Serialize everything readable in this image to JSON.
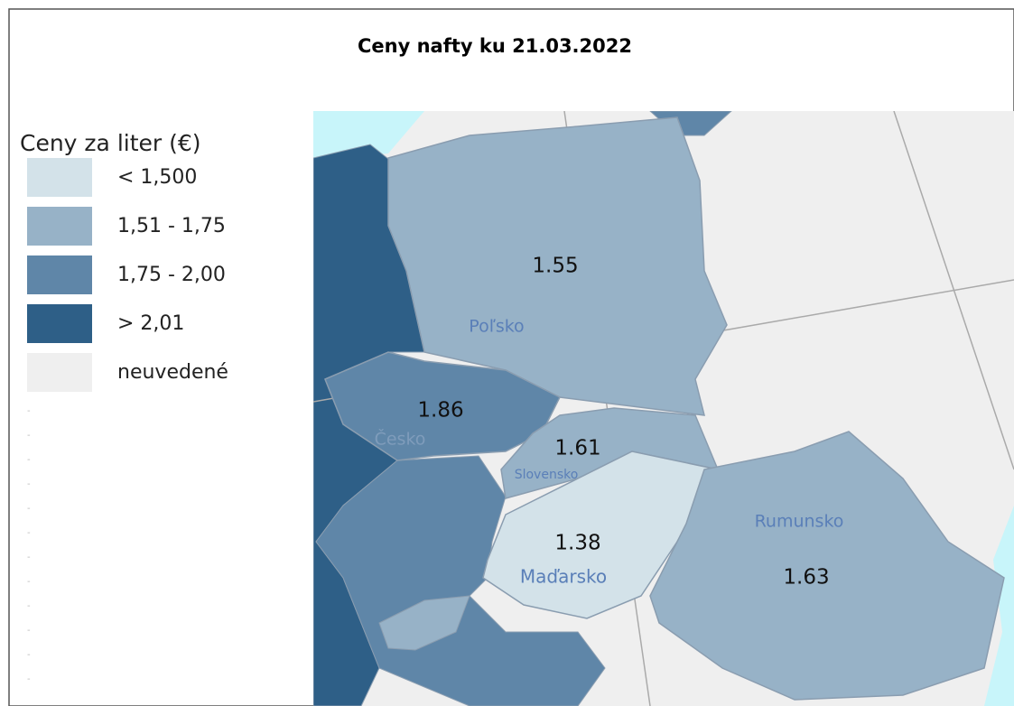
{
  "title": "Ceny nafty ku 21.03.2022",
  "legend": {
    "title": "Ceny za liter (€)",
    "items": [
      {
        "label": "< 1,500",
        "color": "#d3e2e9"
      },
      {
        "label": "1,51 - 1,75",
        "color": "#97b2c7"
      },
      {
        "label": "1,75 - 2,00",
        "color": "#5f86a8"
      },
      {
        "label": "> 2,01",
        "color": "#2e5f87"
      },
      {
        "label": "neuvedené",
        "color": "#efefef"
      }
    ]
  },
  "regions": [
    {
      "name": "Poľsko",
      "value": "1.55",
      "color": "#97b2c7"
    },
    {
      "name": "Česko",
      "value": "1.86",
      "color": "#5f86a8"
    },
    {
      "name": "Slovensko",
      "value": "1.61",
      "color": "#97b2c7"
    },
    {
      "name": "Maďarsko",
      "value": "1.38",
      "color": "#d3e2e9"
    },
    {
      "name": "Rumunsko",
      "value": "1.63",
      "color": "#97b2c7"
    }
  ]
}
